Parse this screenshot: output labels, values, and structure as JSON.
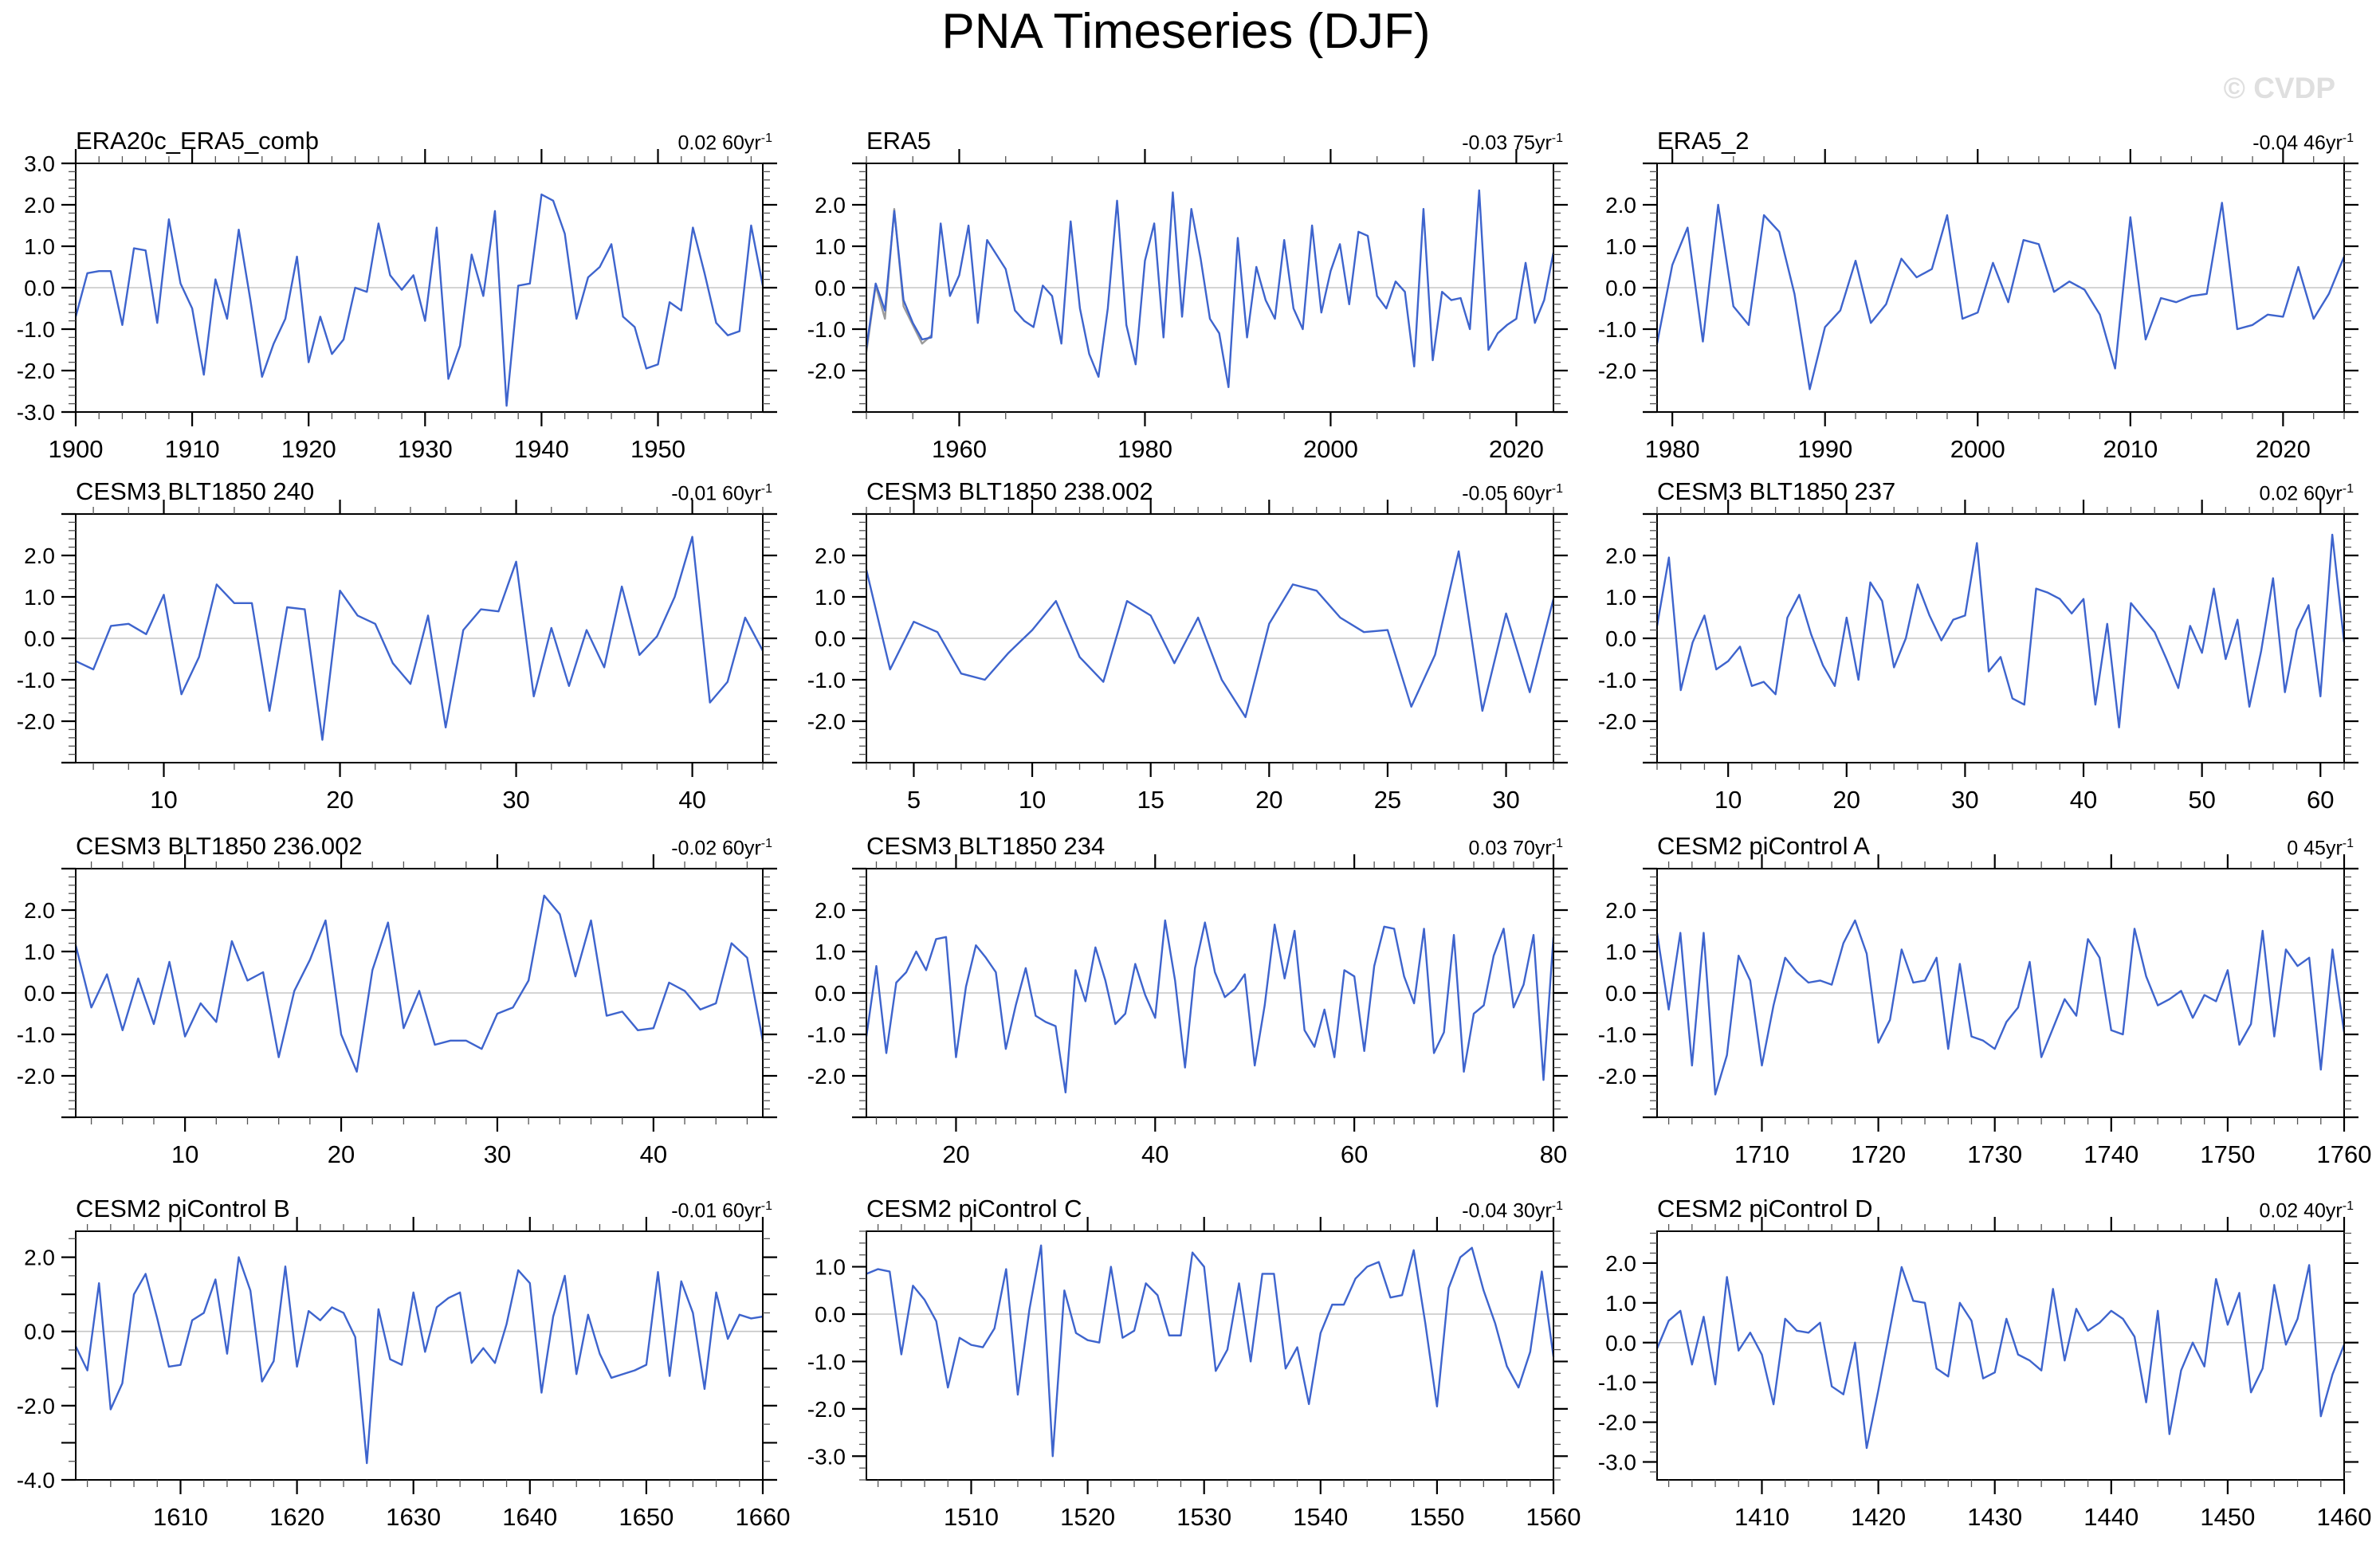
{
  "page_title": "PNA Timeseries (DJF)",
  "watermark": "© CVDP",
  "trend_sup": "-1",
  "colors": {
    "line": "#3e64cd",
    "secondary_line": "#9b9b9b",
    "zero_line": "#c6c6c6",
    "axis": "#000000",
    "minor_tick": "#555555",
    "watermark": "#dfdfdf"
  },
  "chart_data": [
    {
      "type": "line",
      "title": "ERA20c_ERA5_comb",
      "trend": "0.02 60yr",
      "xlabel": "",
      "ylabel": "",
      "x_start": 1900,
      "xlim": [
        1900,
        1959
      ],
      "xticks": [
        1900,
        1910,
        1920,
        1930,
        1940,
        1950
      ],
      "x_minor_step": 2,
      "ylim": [
        -3,
        3
      ],
      "y_minor_step": 0.2,
      "ylabels": [
        [
          3,
          "3.0"
        ],
        [
          2,
          "2.0"
        ],
        [
          1,
          "1.0"
        ],
        [
          0,
          "0.0"
        ],
        [
          -1,
          "-1.0"
        ],
        [
          -2,
          "-2.0"
        ],
        [
          -3,
          "-3.0"
        ]
      ],
      "values": [
        -0.7,
        0.35,
        0.4,
        0.4,
        -0.9,
        0.95,
        0.9,
        -0.85,
        1.65,
        0.1,
        -0.5,
        -2.1,
        0.2,
        -0.75,
        1.4,
        -0.3,
        -2.15,
        -1.35,
        -0.75,
        0.75,
        -1.8,
        -0.7,
        -1.6,
        -1.25,
        0.0,
        -0.1,
        1.55,
        0.3,
        -0.05,
        0.3,
        -0.8,
        1.45,
        -2.2,
        -1.4,
        0.8,
        -0.2,
        1.85,
        -2.85,
        0.05,
        0.1,
        2.25,
        2.1,
        1.3,
        -0.75,
        0.25,
        0.5,
        1.05,
        -0.7,
        -0.95,
        -1.95,
        -1.85,
        -0.35,
        -0.55,
        1.45,
        0.35,
        -0.85,
        -1.15,
        -1.05,
        1.5,
        0.05
      ]
    },
    {
      "type": "line",
      "title": "ERA5",
      "trend": "-0.03 75yr",
      "xlabel": "",
      "ylabel": "",
      "x_start": 1950,
      "xlim": [
        1950,
        2024
      ],
      "xticks": [
        1960,
        1980,
        2000,
        2020
      ],
      "x_minor_step": 5,
      "ylim": [
        -3,
        3
      ],
      "y_minor_step": 0.2,
      "ylabels": [
        [
          2,
          "2.0"
        ],
        [
          1,
          "1.0"
        ],
        [
          0,
          "0.0"
        ],
        [
          -1,
          "-1.0"
        ],
        [
          -2,
          "-2.0"
        ]
      ],
      "values": [
        -1.45,
        0.1,
        -0.55,
        1.85,
        -0.3,
        -0.85,
        -1.25,
        -1.2,
        1.55,
        -0.2,
        0.3,
        1.5,
        -0.85,
        1.15,
        0.8,
        0.45,
        -0.55,
        -0.8,
        -0.95,
        0.05,
        -0.2,
        -1.35,
        1.6,
        -0.5,
        -1.6,
        -2.15,
        -0.5,
        2.1,
        -0.9,
        -1.85,
        0.65,
        1.55,
        -1.2,
        2.3,
        -0.7,
        1.9,
        0.7,
        -0.75,
        -1.1,
        -2.4,
        1.2,
        -1.2,
        0.5,
        -0.3,
        -0.75,
        1.15,
        -0.5,
        -1.0,
        1.5,
        -0.6,
        0.4,
        1.05,
        -0.4,
        1.35,
        1.25,
        -0.2,
        -0.5,
        0.15,
        -0.1,
        -1.9,
        1.9,
        -1.75,
        -0.1,
        -0.3,
        -0.25,
        -1.0,
        2.35,
        -1.5,
        -1.1,
        -0.9,
        -0.75,
        0.6,
        -0.85,
        -0.3,
        0.85
      ],
      "series2": {
        "x_start": 1950,
        "values": [
          -1.55,
          0.05,
          -0.75,
          1.9,
          -0.45,
          -0.9,
          -1.35,
          -1.15
        ]
      }
    },
    {
      "type": "line",
      "title": "ERA5_2",
      "trend": "-0.04 46yr",
      "xlabel": "",
      "ylabel": "",
      "x_start": 1979,
      "xlim": [
        1979,
        2024
      ],
      "xticks": [
        1980,
        1990,
        2000,
        2010,
        2020
      ],
      "x_minor_step": 2,
      "ylim": [
        -3,
        3
      ],
      "y_minor_step": 0.2,
      "ylabels": [
        [
          2,
          "2.0"
        ],
        [
          1,
          "1.0"
        ],
        [
          0,
          "0.0"
        ],
        [
          -1,
          "-1.0"
        ],
        [
          -2,
          "-2.0"
        ]
      ],
      "values": [
        -1.35,
        0.55,
        1.45,
        -1.3,
        2.0,
        -0.45,
        -0.9,
        1.75,
        1.35,
        -0.15,
        -2.45,
        -0.95,
        -0.55,
        0.65,
        -0.85,
        -0.4,
        0.7,
        0.25,
        0.45,
        1.75,
        -0.75,
        -0.6,
        0.6,
        -0.35,
        1.15,
        1.05,
        -0.1,
        0.15,
        -0.05,
        -0.65,
        -1.95,
        1.7,
        -1.25,
        -0.25,
        -0.35,
        -0.2,
        -0.15,
        2.05,
        -1.0,
        -0.9,
        -0.65,
        -0.7,
        0.5,
        -0.75,
        -0.15,
        0.75
      ]
    },
    {
      "type": "line",
      "title": "CESM3 BLT1850 240",
      "trend": "-0.01 60yr",
      "xlabel": "",
      "ylabel": "",
      "x_start": 5,
      "xlim": [
        5,
        44
      ],
      "xticks": [
        10,
        20,
        30,
        40
      ],
      "x_minor_step": 2,
      "ylim": [
        -3,
        3
      ],
      "y_minor_step": 0.2,
      "ylabels": [
        [
          2,
          "2.0"
        ],
        [
          1,
          "1.0"
        ],
        [
          0,
          "0.0"
        ],
        [
          -1,
          "-1.0"
        ],
        [
          -2,
          "-2.0"
        ]
      ],
      "values": [
        -0.55,
        -0.75,
        0.3,
        0.35,
        0.1,
        1.05,
        -1.35,
        -0.45,
        1.3,
        0.85,
        0.85,
        -1.75,
        0.75,
        0.7,
        -2.45,
        1.15,
        0.55,
        0.35,
        -0.6,
        -1.1,
        0.55,
        -2.15,
        0.2,
        0.7,
        0.65,
        1.85,
        -1.4,
        0.25,
        -1.15,
        0.2,
        -0.7,
        1.25,
        -0.4,
        0.05,
        1.0,
        2.45,
        -1.55,
        -1.05,
        0.5,
        -0.3
      ]
    },
    {
      "type": "line",
      "title": "CESM3 BLT1850 238.002",
      "trend": "-0.05 60yr",
      "xlabel": "",
      "ylabel": "",
      "x_start": 3,
      "xlim": [
        3,
        32
      ],
      "xticks": [
        5,
        10,
        15,
        20,
        25,
        30
      ],
      "x_minor_step": 1,
      "ylim": [
        -3,
        3
      ],
      "y_minor_step": 0.2,
      "ylabels": [
        [
          2,
          "2.0"
        ],
        [
          1,
          "1.0"
        ],
        [
          0,
          "0.0"
        ],
        [
          -1,
          "-1.0"
        ],
        [
          -2,
          "-2.0"
        ]
      ],
      "values": [
        1.65,
        -0.75,
        0.4,
        0.15,
        -0.85,
        -1.0,
        -0.35,
        0.2,
        0.9,
        -0.45,
        -1.05,
        0.9,
        0.55,
        -0.6,
        0.5,
        -1.0,
        -1.9,
        0.35,
        1.3,
        1.15,
        0.5,
        0.15,
        0.2,
        -1.65,
        -0.4,
        2.1,
        -1.75,
        0.6,
        -1.3,
        0.95
      ]
    },
    {
      "type": "line",
      "title": "CESM3 BLT1850 237",
      "trend": "0.02 60yr",
      "xlabel": "",
      "ylabel": "",
      "x_start": 4,
      "xlim": [
        4,
        62
      ],
      "xticks": [
        10,
        20,
        30,
        40,
        50,
        60
      ],
      "x_minor_step": 2,
      "ylim": [
        -3,
        3
      ],
      "y_minor_step": 0.2,
      "ylabels": [
        [
          2,
          "2.0"
        ],
        [
          1,
          "1.0"
        ],
        [
          0,
          "0.0"
        ],
        [
          -1,
          "-1.0"
        ],
        [
          -2,
          "-2.0"
        ]
      ],
      "values": [
        0.3,
        1.95,
        -1.25,
        -0.1,
        0.55,
        -0.75,
        -0.55,
        -0.2,
        -1.15,
        -1.05,
        -1.35,
        0.5,
        1.05,
        0.1,
        -0.65,
        -1.15,
        0.5,
        -1.0,
        1.35,
        0.9,
        -0.7,
        0.0,
        1.3,
        0.55,
        -0.05,
        0.45,
        0.55,
        2.3,
        -0.8,
        -0.45,
        -1.45,
        -1.6,
        1.2,
        1.1,
        0.95,
        0.6,
        0.95,
        -1.6,
        0.35,
        -2.15,
        0.85,
        0.5,
        0.15,
        -0.5,
        -1.2,
        0.3,
        -0.35,
        1.2,
        -0.5,
        0.45,
        -1.65,
        -0.3,
        1.45,
        -1.3,
        0.2,
        0.8,
        -1.4,
        2.5,
        -0.1
      ]
    },
    {
      "type": "line",
      "title": "CESM3 BLT1850 236.002",
      "trend": "-0.02 60yr",
      "xlabel": "",
      "ylabel": "",
      "x_start": 3,
      "xlim": [
        3,
        47
      ],
      "xticks": [
        10,
        20,
        30,
        40
      ],
      "x_minor_step": 2,
      "ylim": [
        -3,
        3
      ],
      "y_minor_step": 0.2,
      "ylabels": [
        [
          2,
          "2.0"
        ],
        [
          1,
          "1.0"
        ],
        [
          0,
          "0.0"
        ],
        [
          -1,
          "-1.0"
        ],
        [
          -2,
          "-2.0"
        ]
      ],
      "values": [
        1.15,
        -0.35,
        0.45,
        -0.9,
        0.35,
        -0.75,
        0.75,
        -1.05,
        -0.25,
        -0.7,
        1.25,
        0.3,
        0.5,
        -1.55,
        0.05,
        0.8,
        1.75,
        -1.0,
        -1.9,
        0.55,
        1.7,
        -0.85,
        0.05,
        -1.25,
        -1.15,
        -1.15,
        -1.35,
        -0.5,
        -0.35,
        0.3,
        2.35,
        1.9,
        0.4,
        1.75,
        -0.55,
        -0.45,
        -0.9,
        -0.85,
        0.25,
        0.05,
        -0.4,
        -0.25,
        1.2,
        0.85,
        -1.15
      ]
    },
    {
      "type": "line",
      "title": "CESM3 BLT1850 234",
      "trend": "0.03 70yr",
      "xlabel": "",
      "ylabel": "",
      "x_start": 11,
      "xlim": [
        11,
        80
      ],
      "xticks": [
        20,
        40,
        60,
        80
      ],
      "x_minor_step": 2,
      "ylim": [
        -3,
        3
      ],
      "y_minor_step": 0.2,
      "ylabels": [
        [
          2,
          "2.0"
        ],
        [
          1,
          "1.0"
        ],
        [
          0,
          "0.0"
        ],
        [
          -1,
          "-1.0"
        ],
        [
          -2,
          "-2.0"
        ]
      ],
      "values": [
        -1.05,
        0.65,
        -1.45,
        0.25,
        0.5,
        1.0,
        0.55,
        1.3,
        1.35,
        -1.55,
        0.15,
        1.15,
        0.85,
        0.5,
        -1.35,
        -0.3,
        0.6,
        -0.55,
        -0.7,
        -0.8,
        -2.4,
        0.55,
        -0.2,
        1.1,
        0.3,
        -0.75,
        -0.5,
        0.7,
        -0.05,
        -0.6,
        1.75,
        0.3,
        -1.8,
        0.6,
        1.7,
        0.5,
        -0.1,
        0.1,
        0.45,
        -1.75,
        -0.3,
        1.65,
        0.35,
        1.5,
        -0.9,
        -1.3,
        -0.4,
        -1.55,
        0.55,
        0.4,
        -1.4,
        0.65,
        1.6,
        1.55,
        0.4,
        -0.25,
        1.55,
        -1.45,
        -0.95,
        1.4,
        -1.9,
        -0.5,
        -0.3,
        0.9,
        1.55,
        -0.35,
        0.2,
        1.4,
        -2.1,
        1.35
      ]
    },
    {
      "type": "line",
      "title": "CESM2 piControl A",
      "trend": "0 45yr",
      "xlabel": "",
      "ylabel": "",
      "x_start": 1701,
      "xlim": [
        1701,
        1760
      ],
      "xticks": [
        1710,
        1720,
        1730,
        1740,
        1750,
        1760
      ],
      "x_minor_step": 2,
      "ylim": [
        -3,
        3
      ],
      "y_minor_step": 0.2,
      "ylabels": [
        [
          2,
          "2.0"
        ],
        [
          1,
          "1.0"
        ],
        [
          0,
          "0.0"
        ],
        [
          -1,
          "-1.0"
        ],
        [
          -2,
          "-2.0"
        ]
      ],
      "values": [
        1.45,
        -0.4,
        1.45,
        -1.75,
        1.45,
        -2.45,
        -1.5,
        0.9,
        0.3,
        -1.75,
        -0.3,
        0.85,
        0.5,
        0.25,
        0.3,
        0.2,
        1.2,
        1.75,
        0.95,
        -1.2,
        -0.65,
        1.05,
        0.25,
        0.3,
        0.85,
        -1.35,
        0.7,
        -1.05,
        -1.15,
        -1.35,
        -0.7,
        -0.35,
        0.75,
        -1.55,
        -0.85,
        -0.15,
        -0.55,
        1.3,
        0.85,
        -0.9,
        -1.0,
        1.55,
        0.4,
        -0.3,
        -0.15,
        0.05,
        -0.6,
        -0.05,
        -0.2,
        0.55,
        -1.25,
        -0.75,
        1.5,
        -1.05,
        1.05,
        0.65,
        0.85,
        -1.85,
        1.05,
        -0.95
      ]
    },
    {
      "type": "line",
      "title": "CESM2 piControl B",
      "trend": "-0.01 60yr",
      "xlabel": "",
      "ylabel": "",
      "x_start": 1601,
      "xlim": [
        1601,
        1660
      ],
      "xticks": [
        1610,
        1620,
        1630,
        1640,
        1650,
        1660
      ],
      "x_minor_step": 2,
      "ylim": [
        -4.0,
        2.7
      ],
      "y_minor_step": 0.5,
      "ylabels": [
        [
          2,
          "2.0"
        ],
        [
          0,
          "0.0"
        ],
        [
          -2,
          "-2.0"
        ],
        [
          -4,
          "-4.0"
        ]
      ],
      "values": [
        -0.4,
        -1.05,
        1.3,
        -2.1,
        -1.4,
        1.0,
        1.55,
        0.35,
        -0.95,
        -0.9,
        0.3,
        0.5,
        1.4,
        -0.6,
        2.0,
        1.1,
        -1.35,
        -0.8,
        1.75,
        -0.95,
        0.55,
        0.3,
        0.65,
        0.5,
        -0.15,
        -3.55,
        0.6,
        -0.75,
        -0.9,
        1.05,
        -0.55,
        0.65,
        0.9,
        1.05,
        -0.85,
        -0.45,
        -0.85,
        0.2,
        1.65,
        1.3,
        -1.65,
        0.4,
        1.5,
        -1.15,
        0.45,
        -0.6,
        -1.25,
        -1.15,
        -1.05,
        -0.9,
        1.6,
        -1.2,
        1.35,
        0.5,
        -1.55,
        1.05,
        -0.2,
        0.45,
        0.35,
        0.4
      ]
    },
    {
      "type": "line",
      "title": "CESM2 piControl C",
      "trend": "-0.04 30yr",
      "xlabel": "",
      "ylabel": "",
      "x_start": 1501,
      "xlim": [
        1501,
        1560
      ],
      "xticks": [
        1510,
        1520,
        1530,
        1540,
        1550,
        1560
      ],
      "x_minor_step": 2,
      "ylim": [
        -3.5,
        1.75
      ],
      "y_minor_step": 0.25,
      "ylabels": [
        [
          1,
          "1.0"
        ],
        [
          0,
          "0.0"
        ],
        [
          -1,
          "-1.0"
        ],
        [
          -2,
          "-2.0"
        ],
        [
          -3,
          "-3.0"
        ]
      ],
      "values": [
        0.85,
        0.95,
        0.9,
        -0.85,
        0.6,
        0.3,
        -0.15,
        -1.55,
        -0.5,
        -0.65,
        -0.7,
        -0.3,
        0.95,
        -1.7,
        0.1,
        1.45,
        -3.0,
        0.5,
        -0.4,
        -0.55,
        -0.6,
        1.0,
        -0.5,
        -0.35,
        0.65,
        0.4,
        -0.45,
        -0.45,
        1.3,
        1.0,
        -1.2,
        -0.75,
        0.65,
        -1.0,
        0.85,
        0.85,
        -1.15,
        -0.7,
        -1.9,
        -0.4,
        0.2,
        0.2,
        0.75,
        1.0,
        1.1,
        0.35,
        0.4,
        1.35,
        -0.2,
        -1.95,
        0.55,
        1.2,
        1.4,
        0.5,
        -0.2,
        -1.1,
        -1.55,
        -0.8,
        0.9,
        -0.9
      ]
    },
    {
      "type": "line",
      "title": "CESM2 piControl D",
      "trend": "0.02 40yr",
      "xlabel": "",
      "ylabel": "",
      "x_start": 1401,
      "xlim": [
        1401,
        1460
      ],
      "xticks": [
        1410,
        1420,
        1430,
        1440,
        1450,
        1460
      ],
      "x_minor_step": 2,
      "ylim": [
        -3.45,
        2.8
      ],
      "y_minor_step": 0.25,
      "ylabels": [
        [
          2,
          "2.0"
        ],
        [
          1,
          "1.0"
        ],
        [
          0,
          "0.0"
        ],
        [
          -1,
          "-1.0"
        ],
        [
          -2,
          "-2.0"
        ],
        [
          -3,
          "-3.0"
        ]
      ],
      "values": [
        -0.15,
        0.55,
        0.8,
        -0.55,
        0.65,
        -1.05,
        1.65,
        -0.2,
        0.25,
        -0.3,
        -1.55,
        0.6,
        0.3,
        0.25,
        0.5,
        -1.1,
        -1.3,
        0.0,
        -2.65,
        -1.2,
        0.35,
        1.9,
        1.05,
        1.0,
        -0.65,
        -0.85,
        1.0,
        0.55,
        -0.9,
        -0.75,
        0.6,
        -0.3,
        -0.45,
        -0.7,
        1.35,
        -0.45,
        0.85,
        0.3,
        0.5,
        0.8,
        0.6,
        0.15,
        -1.5,
        0.8,
        -2.3,
        -0.7,
        0.0,
        -0.6,
        1.6,
        0.45,
        1.25,
        -1.25,
        -0.65,
        1.45,
        -0.05,
        0.6,
        1.95,
        -1.85,
        -0.8,
        -0.05
      ]
    }
  ]
}
